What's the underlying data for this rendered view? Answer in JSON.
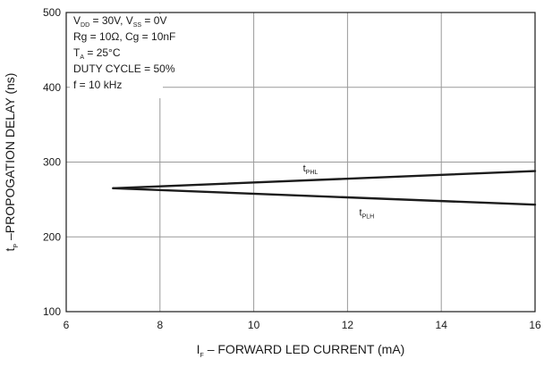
{
  "chart_data": {
    "type": "line",
    "title": "",
    "xlabel": {
      "symbol": "I",
      "subscript": "F",
      "text": " – FORWARD LED CURRENT (mA)"
    },
    "ylabel": {
      "symbol": "t",
      "subscript": "P",
      "text": " –PROPOGATION DELAY (ns)"
    },
    "xlim": [
      6,
      16
    ],
    "ylim": [
      100,
      500
    ],
    "xticks": [
      6,
      8,
      10,
      12,
      14,
      16
    ],
    "yticks": [
      100,
      200,
      300,
      400,
      500
    ],
    "grid": true,
    "conditions": [
      {
        "text": "V",
        "sub": "DD",
        "rest": " = 30V, V",
        "sub2": "SS",
        "rest2": " = 0V"
      },
      {
        "text": "Rg = 10Ω, Cg = 10nF"
      },
      {
        "text": "T",
        "sub": "A",
        "rest": " = 25°C"
      },
      {
        "text": "DUTY CYCLE = 50%"
      },
      {
        "text": "f = 10 kHz"
      }
    ],
    "series": [
      {
        "name": "PHL",
        "label_symbol": "t",
        "label_sub": "PHL",
        "x": [
          7,
          16
        ],
        "y": [
          265,
          288
        ]
      },
      {
        "name": "PLH",
        "label_symbol": "t",
        "label_sub": "PLH",
        "x": [
          7,
          16
        ],
        "y": [
          265,
          243
        ]
      }
    ],
    "colors": {
      "line": "#1c1c1c",
      "grid": "#9a9a9a",
      "background": "#ffffff"
    }
  }
}
